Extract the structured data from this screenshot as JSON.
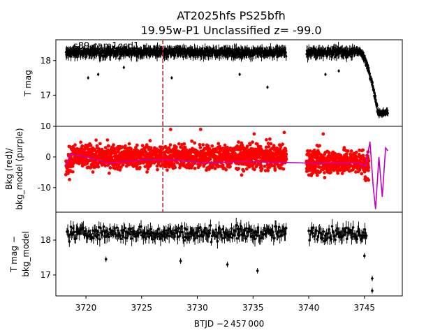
{
  "figure": {
    "title_line1": "AT2025hfs  PS25bfh",
    "title_line2": "19.95w-P1 Unclassified z= -99.0",
    "annotation": "s89 cam1ccd1",
    "xlabel": "BTJD −2 457 000",
    "event_marker_x": 3726.9,
    "colors": {
      "tmag": "#000000",
      "bkg": "#ff0000",
      "bkg_model": "#bf00bf",
      "marker": "#d62728"
    }
  },
  "chart_data": [
    {
      "type": "scatter",
      "panel": "top",
      "ylabel": "T mag",
      "xlim": [
        3717.3,
        3748.4
      ],
      "ylim": [
        18.6,
        16.1
      ],
      "y_inverted": true,
      "xticks": [
        3720,
        3725,
        3730,
        3735,
        3740,
        3745
      ],
      "yticks": [
        17,
        18
      ],
      "segments": [
        {
          "x_start": 3718.2,
          "x_end": 3738.0,
          "baseline_mag": 18.3
        },
        {
          "x_start": 3739.8,
          "x_end": 3744.2,
          "baseline_mag": 18.3
        }
      ],
      "rise": {
        "x_start": 3744.2,
        "x_end": 3747.1,
        "start_mag": 18.3,
        "peak_mag": 16.5
      },
      "outliers": [
        {
          "x": 3720.2,
          "y": 17.5
        },
        {
          "x": 3721.1,
          "y": 17.6
        },
        {
          "x": 3723.4,
          "y": 17.8
        },
        {
          "x": 3727.7,
          "y": 17.5
        },
        {
          "x": 3733.8,
          "y": 17.6
        },
        {
          "x": 3736.3,
          "y": 17.23
        },
        {
          "x": 3741.5,
          "y": 17.6
        },
        {
          "x": 3742.7,
          "y": 17.7
        }
      ]
    },
    {
      "type": "scatter",
      "panel": "middle",
      "ylabel_line1": "Bkg (red)/",
      "ylabel_line2": "bkg_model (purple)",
      "xlim": [
        3717.3,
        3748.4
      ],
      "ylim": [
        -18,
        10
      ],
      "yticks": [
        10,
        0,
        -10
      ],
      "segments": [
        {
          "x_start": 3718.2,
          "x_end": 3738.0,
          "center": 0,
          "spread": 4.5
        },
        {
          "x_start": 3739.8,
          "x_end": 3745.4,
          "center": -1.5,
          "spread": 4.5
        }
      ],
      "model": [
        {
          "x": 3718.2,
          "y": -3
        },
        {
          "x": 3718.6,
          "y": 1
        },
        {
          "x": 3720,
          "y": 0
        },
        {
          "x": 3722,
          "y": -2
        },
        {
          "x": 3725,
          "y": -1
        },
        {
          "x": 3728,
          "y": -1
        },
        {
          "x": 3731,
          "y": -2
        },
        {
          "x": 3734,
          "y": -1.5
        },
        {
          "x": 3738,
          "y": -1.8
        },
        {
          "x": 3740,
          "y": -2
        },
        {
          "x": 3744.5,
          "y": -2
        },
        {
          "x": 3745.1,
          "y": -3
        },
        {
          "x": 3745.5,
          "y": 5
        },
        {
          "x": 3745.8,
          "y": -10
        },
        {
          "x": 3746.0,
          "y": -17
        },
        {
          "x": 3746.3,
          "y": 0
        },
        {
          "x": 3746.6,
          "y": -13
        },
        {
          "x": 3746.9,
          "y": 3
        },
        {
          "x": 3747.1,
          "y": 2
        }
      ]
    },
    {
      "type": "scatter",
      "panel": "bottom",
      "ylabel_line1": "T mag −",
      "ylabel_line2": "bkg_model",
      "xlim": [
        3717.3,
        3748.4
      ],
      "ylim": [
        18.8,
        16.4
      ],
      "y_inverted": true,
      "yticks": [
        17,
        18
      ],
      "segments": [
        {
          "x_start": 3718.3,
          "x_end": 3738.0,
          "center": 18.2,
          "spread": 0.32
        },
        {
          "x_start": 3740.0,
          "x_end": 3745.2,
          "center": 18.2,
          "spread": 0.32
        }
      ],
      "outliers": [
        {
          "x": 3721.8,
          "y": 17.45
        },
        {
          "x": 3728.5,
          "y": 17.4
        },
        {
          "x": 3732.7,
          "y": 17.3
        },
        {
          "x": 3735.4,
          "y": 17.12
        },
        {
          "x": 3745.0,
          "y": 17.55
        },
        {
          "x": 3745.7,
          "y": 16.55
        },
        {
          "x": 3745.7,
          "y": 16.9
        }
      ]
    }
  ]
}
